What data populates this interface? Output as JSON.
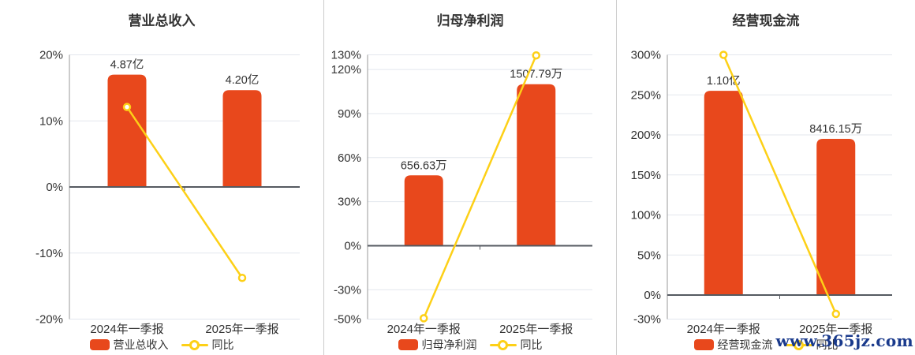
{
  "colors": {
    "bar": "#e8481c",
    "line": "#fdd017",
    "text": "#333333",
    "grid": "#e3e7ee",
    "y_axis": "#999999",
    "zero_axis": "#555a61",
    "divider": "#cccccc",
    "watermark": "#1a3a8c"
  },
  "watermark": {
    "text": "www.365jz.com"
  },
  "chart_data": [
    {
      "type": "bar",
      "title": "营业总收入",
      "categories": [
        "2024年一季报",
        "2025年一季报"
      ],
      "bar_series": {
        "name": "营业总收入",
        "labels": [
          "4.87亿",
          "4.20亿"
        ],
        "axis_heights_pct": [
          17.0,
          14.66
        ]
      },
      "line_series": {
        "name": "同比",
        "values_pct": [
          12.1,
          -13.76
        ]
      },
      "y_tick_values": [
        20,
        10,
        0,
        -10,
        -20
      ],
      "y_tick_labels": [
        "20%",
        "10%",
        "0%",
        "-10%",
        "-20%"
      ],
      "ylim": [
        -20,
        20
      ],
      "grid": "horizontal",
      "legend_position": "bottom"
    },
    {
      "type": "bar",
      "title": "归母净利润",
      "categories": [
        "2024年一季报",
        "2025年一季报"
      ],
      "bar_series": {
        "name": "归母净利润",
        "labels": [
          "656.63万",
          "1507.79万"
        ],
        "axis_heights_pct": [
          47.9,
          110.0
        ]
      },
      "line_series": {
        "name": "同比",
        "values_pct": [
          -49.4,
          129.63
        ]
      },
      "y_tick_values": [
        130,
        120,
        90,
        60,
        30,
        0,
        -30,
        -50
      ],
      "y_tick_labels": [
        "130%",
        "120%",
        "90%",
        "60%",
        "30%",
        "0%",
        "-30%",
        "-50%"
      ],
      "ylim": [
        -50,
        130
      ],
      "grid": "horizontal",
      "legend_position": "bottom"
    },
    {
      "type": "bar",
      "title": "经营现金流",
      "categories": [
        "2024年一季报",
        "2025年一季报"
      ],
      "bar_series": {
        "name": "经营现金流",
        "labels": [
          "1.10亿",
          "8416.15万"
        ],
        "axis_heights_pct": [
          255.0,
          195.1
        ]
      },
      "line_series": {
        "name": "同比",
        "values_pct": [
          300.0,
          -23.49
        ]
      },
      "y_tick_values": [
        300,
        250,
        200,
        150,
        100,
        50,
        0,
        -30
      ],
      "y_tick_labels": [
        "300%",
        "250%",
        "200%",
        "150%",
        "100%",
        "50%",
        "0%",
        "-30%"
      ],
      "ylim": [
        -30,
        300
      ],
      "grid": "horizontal",
      "legend_position": "bottom"
    }
  ]
}
